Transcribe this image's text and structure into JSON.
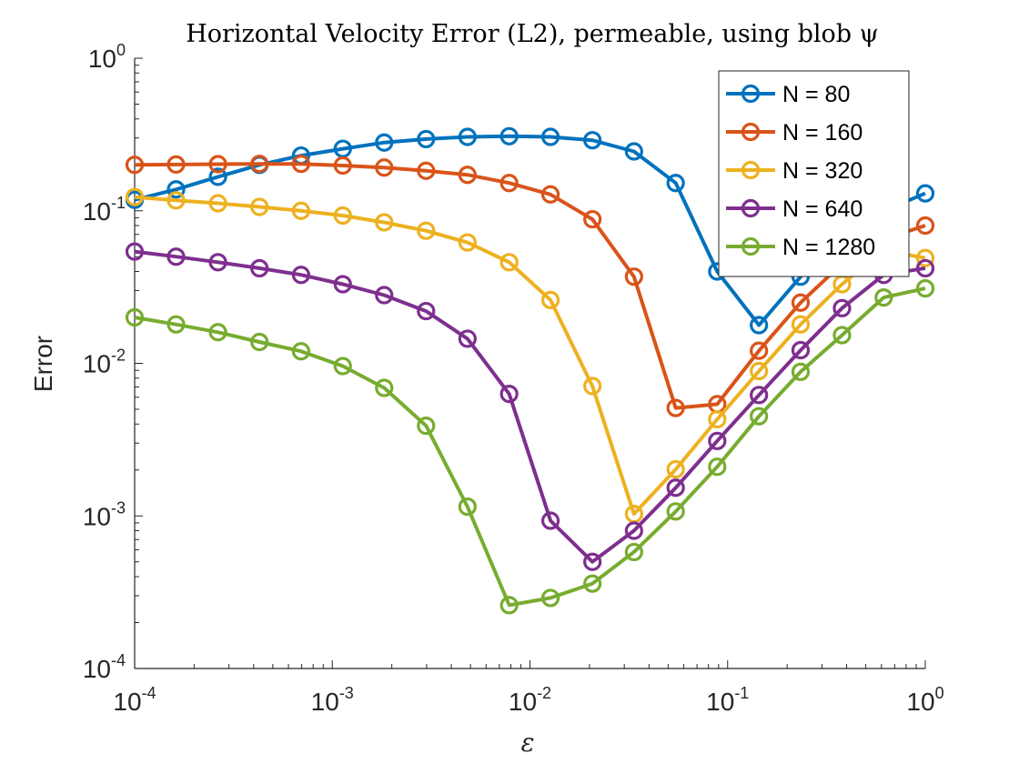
{
  "chart_data": {
    "type": "line",
    "title": "Horizontal Velocity Error (L2), permeable, using blob ψ",
    "xlabel": "ε",
    "ylabel": "Error",
    "xscale": "log",
    "yscale": "log",
    "xlim": [
      0.0001,
      1
    ],
    "ylim": [
      0.0001,
      1
    ],
    "x_ticks": [
      {
        "base": "10",
        "exp": "-4",
        "value": 0.0001
      },
      {
        "base": "10",
        "exp": "-3",
        "value": 0.001
      },
      {
        "base": "10",
        "exp": "-2",
        "value": 0.01
      },
      {
        "base": "10",
        "exp": "-1",
        "value": 0.1
      },
      {
        "base": "10",
        "exp": "0",
        "value": 1
      }
    ],
    "y_ticks": [
      {
        "base": "10",
        "exp": "-4",
        "value": 0.0001
      },
      {
        "base": "10",
        "exp": "-3",
        "value": 0.001
      },
      {
        "base": "10",
        "exp": "-2",
        "value": 0.01
      },
      {
        "base": "10",
        "exp": "-1",
        "value": 0.1
      },
      {
        "base": "10",
        "exp": "0",
        "value": 1
      }
    ],
    "grid": false,
    "legend_position": "top-right",
    "x": [
      0.0001,
      0.000162,
      0.000264,
      0.000428,
      0.000695,
      0.00113,
      0.00183,
      0.00298,
      0.00483,
      0.00785,
      0.0127,
      0.0207,
      0.0336,
      0.0546,
      0.0886,
      0.144,
      0.234,
      0.379,
      0.616,
      1
    ],
    "series": [
      {
        "name": "N = 80",
        "color": "#0072BD",
        "values": [
          0.118,
          0.138,
          0.167,
          0.2,
          0.23,
          0.255,
          0.28,
          0.295,
          0.305,
          0.308,
          0.305,
          0.29,
          0.245,
          0.152,
          0.04,
          0.0178,
          0.037,
          0.065,
          0.1,
          0.13
        ]
      },
      {
        "name": "N = 160",
        "color": "#D95319",
        "values": [
          0.2,
          0.201,
          0.202,
          0.203,
          0.203,
          0.198,
          0.192,
          0.183,
          0.172,
          0.152,
          0.128,
          0.088,
          0.037,
          0.0051,
          0.0054,
          0.0121,
          0.025,
          0.045,
          0.065,
          0.08
        ]
      },
      {
        "name": "N = 320",
        "color": "#EDB120",
        "values": [
          0.123,
          0.117,
          0.112,
          0.106,
          0.1,
          0.093,
          0.084,
          0.074,
          0.062,
          0.046,
          0.026,
          0.0071,
          0.00103,
          0.00202,
          0.0043,
          0.0089,
          0.018,
          0.033,
          0.055,
          0.049
        ]
      },
      {
        "name": "N = 640",
        "color": "#7E2F8E",
        "values": [
          0.054,
          0.05,
          0.046,
          0.042,
          0.038,
          0.033,
          0.028,
          0.022,
          0.0145,
          0.0063,
          0.00093,
          0.0005,
          0.0008,
          0.00153,
          0.0031,
          0.0062,
          0.0122,
          0.023,
          0.038,
          0.042
        ]
      },
      {
        "name": "N = 1280",
        "color": "#77AC30",
        "values": [
          0.02,
          0.018,
          0.016,
          0.0138,
          0.012,
          0.0096,
          0.0069,
          0.0039,
          0.00115,
          0.00026,
          0.00029,
          0.00036,
          0.00058,
          0.00107,
          0.0021,
          0.0045,
          0.0088,
          0.0153,
          0.027,
          0.031
        ]
      }
    ]
  }
}
